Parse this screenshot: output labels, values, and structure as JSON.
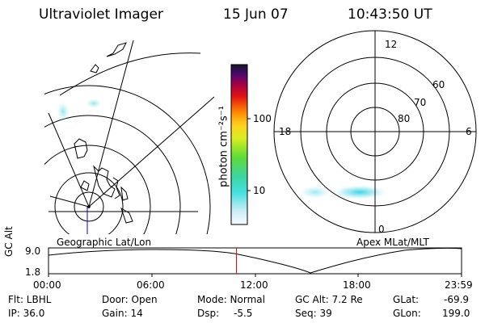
{
  "header": {
    "title": "Ultraviolet Imager",
    "date": "15 Jun 07",
    "time": "10:43:50 UT"
  },
  "maps": {
    "left_caption": "Geographic Lat/Lon",
    "right_caption": "Apex MLat/MLT"
  },
  "colorbar": {
    "unit_label": "photon cm⁻²s⁻¹",
    "ticks": [
      "100",
      "10"
    ]
  },
  "polar": {
    "clock_labels": {
      "top": "12",
      "left": "18",
      "right": "6",
      "bottom": "0"
    },
    "lat_labels": [
      "60",
      "70",
      "80"
    ]
  },
  "timeline": {
    "axis_label": "GC Alt",
    "y_max": "9.0",
    "y_min": "1.8",
    "x_ticks": [
      "00:00",
      "06:00",
      "12:00",
      "18:00",
      "23:59"
    ],
    "current_marker_fraction": 0.455
  },
  "footer": {
    "flt": "Flt: LBHL",
    "ip": "IP: 36.0",
    "door": "Door: Open",
    "gain": "Gain: 14",
    "mode": "Mode: Normal",
    "dsp_label": "Dsp:",
    "dsp_value": "-5.5",
    "gc_alt": "GC Alt: 7.2 Re",
    "seq": "Seq: 39",
    "glat_label": "GLat:",
    "glat_value": "-69.9",
    "glon_label": "GLon:",
    "glon_value": "199.0"
  },
  "colors": {
    "line": "#000000",
    "marker": "#ff0000",
    "meridian": "#0000ff"
  }
}
